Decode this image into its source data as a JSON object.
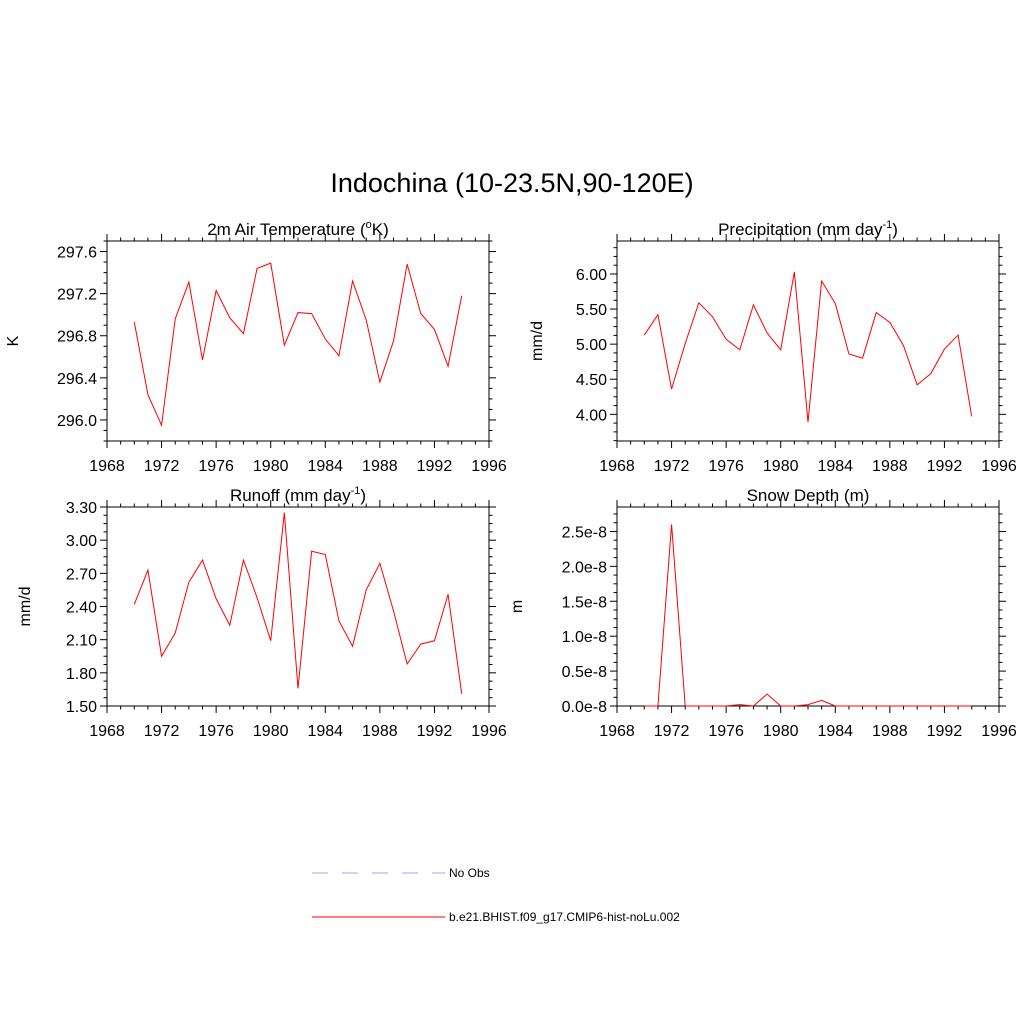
{
  "title": "Indochina (10-23.5N,90-120E)",
  "legend": {
    "entries": [
      {
        "name": "No Obs",
        "color": "#a0a0ff",
        "dash": true
      },
      {
        "name": "b.e21.BHIST.f09_g17.CMIP6-hist-noLu.002",
        "color": "#ff0000",
        "dash": false
      }
    ]
  },
  "chart_data": [
    {
      "type": "line",
      "title_main": "2m Air Temperature (",
      "title_sup": "o",
      "title_tail": "K)",
      "ylabel": "K",
      "xlim": [
        1968,
        1996
      ],
      "ylim": [
        295.8,
        297.7
      ],
      "xticks": [
        1968,
        1972,
        1976,
        1980,
        1984,
        1988,
        1992,
        1996
      ],
      "yticks": [
        296.0,
        296.4,
        296.8,
        297.2,
        297.6
      ],
      "ytick_labels": [
        "296.0",
        "296.4",
        "296.8",
        "297.2",
        "297.6"
      ],
      "series": [
        {
          "name": "b.e21.BHIST.f09_g17.CMIP6-hist-noLu.002",
          "color": "#ff0000",
          "x": [
            1970,
            1971,
            1972,
            1973,
            1974,
            1975,
            1976,
            1977,
            1978,
            1979,
            1980,
            1981,
            1982,
            1983,
            1984,
            1985,
            1986,
            1987,
            1988,
            1989,
            1990,
            1991,
            1992,
            1993,
            1994
          ],
          "y": [
            296.93,
            296.24,
            295.95,
            296.96,
            297.31,
            296.57,
            297.23,
            296.97,
            296.82,
            297.44,
            297.49,
            296.71,
            297.02,
            297.01,
            296.77,
            296.61,
            297.32,
            296.95,
            296.36,
            296.75,
            297.48,
            297.01,
            296.86,
            296.51,
            297.18
          ]
        }
      ]
    },
    {
      "type": "line",
      "title_main": "Precipitation (mm day",
      "title_sup": "-1",
      "title_tail": ")",
      "ylabel": "mm/d",
      "xlim": [
        1968,
        1996
      ],
      "ylim": [
        3.62,
        6.47
      ],
      "xticks": [
        1968,
        1972,
        1976,
        1980,
        1984,
        1988,
        1992,
        1996
      ],
      "yticks": [
        4.0,
        4.5,
        5.0,
        5.5,
        6.0
      ],
      "ytick_labels": [
        "4.00",
        "4.50",
        "5.00",
        "5.50",
        "6.00"
      ],
      "series": [
        {
          "name": "b.e21.BHIST.f09_g17.CMIP6-hist-noLu.002",
          "color": "#ff0000",
          "x": [
            1970,
            1971,
            1972,
            1973,
            1974,
            1975,
            1976,
            1977,
            1978,
            1979,
            1980,
            1981,
            1982,
            1983,
            1984,
            1985,
            1986,
            1987,
            1988,
            1989,
            1990,
            1991,
            1992,
            1993,
            1994
          ],
          "y": [
            5.13,
            5.42,
            4.36,
            5.01,
            5.59,
            5.39,
            5.07,
            4.92,
            5.56,
            5.16,
            4.92,
            6.03,
            3.89,
            5.9,
            5.58,
            4.86,
            4.8,
            5.45,
            5.31,
            4.98,
            4.42,
            4.58,
            4.93,
            5.13,
            3.97
          ]
        }
      ]
    },
    {
      "type": "line",
      "title_main": "Runoff (mm day",
      "title_sup": "-1",
      "title_tail": ")",
      "ylabel": "mm/d",
      "xlim": [
        1968,
        1996
      ],
      "ylim": [
        1.5,
        3.3
      ],
      "xticks": [
        1968,
        1972,
        1976,
        1980,
        1984,
        1988,
        1992,
        1996
      ],
      "yticks": [
        1.5,
        1.8,
        2.1,
        2.4,
        2.7,
        3.0,
        3.3
      ],
      "ytick_labels": [
        "1.50",
        "1.80",
        "2.10",
        "2.40",
        "2.70",
        "3.00",
        "3.30"
      ],
      "series": [
        {
          "name": "b.e21.BHIST.f09_g17.CMIP6-hist-noLu.002",
          "color": "#ff0000",
          "x": [
            1970,
            1971,
            1972,
            1973,
            1974,
            1975,
            1976,
            1977,
            1978,
            1979,
            1980,
            1981,
            1982,
            1983,
            1984,
            1985,
            1986,
            1987,
            1988,
            1989,
            1990,
            1991,
            1992,
            1993,
            1994
          ],
          "y": [
            2.42,
            2.73,
            1.95,
            2.16,
            2.62,
            2.82,
            2.47,
            2.23,
            2.82,
            2.48,
            2.09,
            3.25,
            1.66,
            2.9,
            2.87,
            2.27,
            2.04,
            2.55,
            2.79,
            2.36,
            1.88,
            2.06,
            2.09,
            2.51,
            1.61
          ]
        }
      ]
    },
    {
      "type": "line",
      "title_main": "Snow Depth (m)",
      "title_sup": "",
      "title_tail": "",
      "ylabel": "m",
      "xlim": [
        1968,
        1996
      ],
      "ylim": [
        0,
        2.85e-08
      ],
      "xticks": [
        1968,
        1972,
        1976,
        1980,
        1984,
        1988,
        1992,
        1996
      ],
      "yticks": [
        0,
        5e-09,
        1e-08,
        1.5e-08,
        2e-08,
        2.5e-08
      ],
      "ytick_labels": [
        "0.0e-8",
        "0.5e-8",
        "1.0e-8",
        "1.5e-8",
        "2.0e-8",
        "2.5e-8"
      ],
      "series": [
        {
          "name": "b.e21.BHIST.f09_g17.CMIP6-hist-noLu.002",
          "color": "#ff0000",
          "x": [
            1970,
            1971,
            1972,
            1973,
            1974,
            1975,
            1976,
            1977,
            1978,
            1979,
            1980,
            1981,
            1982,
            1983,
            1984,
            1985,
            1986,
            1987,
            1988,
            1989,
            1990,
            1991,
            1992,
            1993,
            1994
          ],
          "y": [
            0,
            0,
            2.6e-08,
            0,
            0,
            0,
            0,
            2e-10,
            0,
            1.7e-09,
            0,
            0,
            2e-10,
            8e-10,
            0,
            0,
            0,
            0,
            0,
            0,
            0,
            0,
            0,
            0,
            0
          ]
        }
      ]
    }
  ]
}
